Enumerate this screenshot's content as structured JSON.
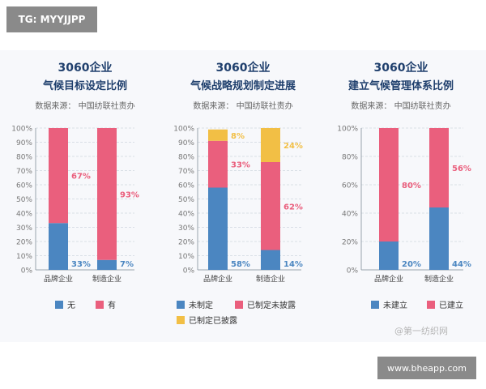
{
  "tag": "TG: MYYJJPP",
  "footer": "www.bheapp.com",
  "watermark": "@第一纺织网",
  "colors": {
    "blue": "#4b86c1",
    "pink": "#ea5f7d",
    "yellow": "#f2bf45",
    "title": "#1f3f6d",
    "text": "#333333",
    "grid": "#cfd6df",
    "axis": "#9aa3ad"
  },
  "chart_data": [
    {
      "type": "bar",
      "stacked": true,
      "title": "3060企业",
      "subtitle": "气候目标设定比例",
      "source": "数据来源： 中国纺联社责办",
      "categories": [
        "品牌企业",
        "制造企业"
      ],
      "yticks": [
        "0%",
        "10%",
        "20%",
        "30%",
        "40%",
        "50%",
        "60%",
        "70%",
        "80%",
        "90%",
        "100%"
      ],
      "ylim": [
        0,
        100
      ],
      "series": [
        {
          "name": "无",
          "color": "#4b86c1",
          "values": [
            33,
            7
          ],
          "labels": [
            "33%",
            "7%"
          ]
        },
        {
          "name": "有",
          "color": "#ea5f7d",
          "values": [
            67,
            93
          ],
          "labels": [
            "67%",
            "93%"
          ]
        }
      ]
    },
    {
      "type": "bar",
      "stacked": true,
      "title": "3060企业",
      "subtitle": "气候战略规划制定进展",
      "source": "数据来源： 中国纺联社责办",
      "categories": [
        "品牌企业",
        "制造企业"
      ],
      "yticks": [
        "0%",
        "10%",
        "20%",
        "30%",
        "40%",
        "50%",
        "60%",
        "70%",
        "80%",
        "90%",
        "100%"
      ],
      "ylim": [
        0,
        100
      ],
      "series": [
        {
          "name": "未制定",
          "color": "#4b86c1",
          "values": [
            58,
            14
          ],
          "labels": [
            "58%",
            "14%"
          ]
        },
        {
          "name": "已制定未披露",
          "color": "#ea5f7d",
          "values": [
            33,
            62
          ],
          "labels": [
            "33%",
            "62%"
          ]
        },
        {
          "name": "已制定已披露",
          "color": "#f2bf45",
          "values": [
            8,
            24
          ],
          "labels": [
            "8%",
            "24%"
          ]
        }
      ]
    },
    {
      "type": "bar",
      "stacked": true,
      "title": "3060企业",
      "subtitle": "建立气候管理体系比例",
      "source": "数据来源： 中国纺联社责办",
      "categories": [
        "品牌企业",
        "制造企业"
      ],
      "yticks": [
        "0%",
        "20%",
        "40%",
        "60%",
        "80%",
        "100%"
      ],
      "ylim": [
        0,
        100
      ],
      "series": [
        {
          "name": "未建立",
          "color": "#4b86c1",
          "values": [
            20,
            44
          ],
          "labels": [
            "20%",
            "44%"
          ]
        },
        {
          "name": "已建立",
          "color": "#ea5f7d",
          "values": [
            80,
            56
          ],
          "labels": [
            "80%",
            "56%"
          ]
        }
      ]
    }
  ]
}
